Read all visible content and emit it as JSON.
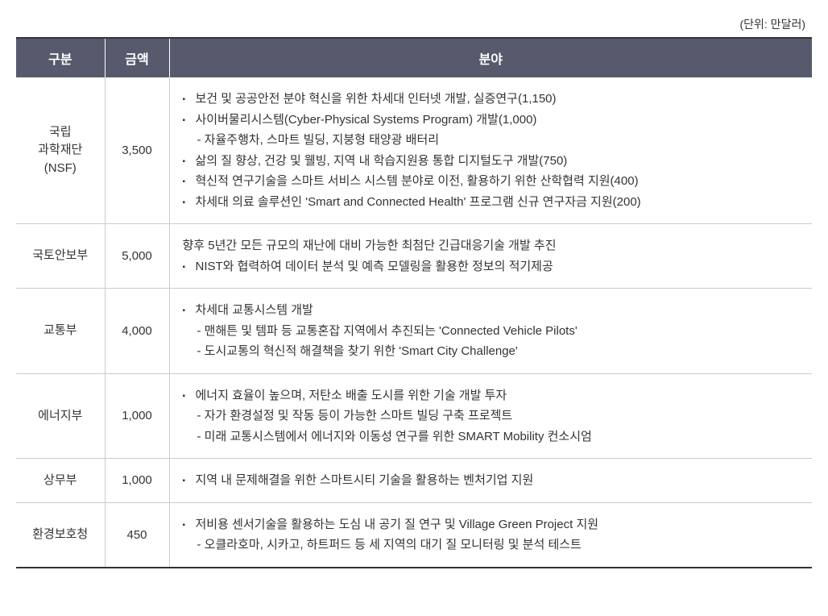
{
  "unit_label": "(단위: 만달러)",
  "columns": {
    "c1": "구분",
    "c2": "금액",
    "c3": "분야"
  },
  "colors": {
    "header_bg": "#575a6c",
    "header_fg": "#ffffff",
    "border_dark": "#333333",
    "border_light": "#cccccc",
    "text": "#333333",
    "background": "#ffffff"
  },
  "rows": [
    {
      "category": "국립\n과학재단\n(NSF)",
      "amount": "3,500",
      "items": [
        {
          "type": "bullet",
          "text": "보건 및 공공안전 분야 혁신을 위한 차세대 인터넷 개발, 실증연구(1,150)"
        },
        {
          "type": "bullet",
          "text": "사이버물리시스템(Cyber-Physical Systems Program) 개발(1,000)"
        },
        {
          "type": "sub",
          "text": "자율주행차, 스마트 빌딩, 지붕형 태양광 배터리"
        },
        {
          "type": "bullet",
          "text": "삶의 질 향상, 건강 및 웰빙, 지역 내 학습지원용 통합 디지털도구 개발(750)"
        },
        {
          "type": "bullet",
          "text": "혁신적 연구기술을 스마트 서비스 시스템 분야로 이전, 활용하기 위한 산학협력 지원(400)"
        },
        {
          "type": "bullet",
          "text": "차세대 의료 솔루션인 'Smart and Connected Health' 프로그램 신규 연구자금 지원(200)"
        }
      ]
    },
    {
      "category": "국토안보부",
      "amount": "5,000",
      "plain": "향후 5년간 모든 규모의 재난에 대비 가능한 최첨단 긴급대응기술 개발 추진",
      "items": [
        {
          "type": "bullet",
          "text": "NIST와 협력하여 데이터 분석 및 예측 모델링을 활용한 정보의 적기제공"
        }
      ]
    },
    {
      "category": "교통부",
      "amount": "4,000",
      "items": [
        {
          "type": "bullet",
          "text": "차세대 교통시스템 개발"
        },
        {
          "type": "sub",
          "text": "맨해튼 및 템파 등 교통혼잡 지역에서 추진되는 'Connected Vehicle Pilots'"
        },
        {
          "type": "sub",
          "text": "도시교통의 혁신적 해결책을 찾기 위한 'Smart City Challenge'"
        }
      ]
    },
    {
      "category": "에너지부",
      "amount": "1,000",
      "items": [
        {
          "type": "bullet",
          "text": "에너지 효율이 높으며, 저탄소 배출 도시를 위한 기술 개발 투자"
        },
        {
          "type": "sub",
          "text": "자가 환경설정 및 작동 등이 가능한 스마트 빌딩 구축 프로젝트"
        },
        {
          "type": "sub",
          "text": "미래 교통시스템에서 에너지와 이동성 연구를 위한 SMART Mobility 컨소시엄"
        }
      ]
    },
    {
      "category": "상무부",
      "amount": "1,000",
      "items": [
        {
          "type": "bullet",
          "text": "지역 내 문제해결을 위한 스마트시티 기술을 활용하는 벤처기업 지원"
        }
      ]
    },
    {
      "category": "환경보호청",
      "amount": "450",
      "items": [
        {
          "type": "bullet",
          "text": "저비용 센서기술을 활용하는 도심 내 공기 질 연구 및 Village Green Project 지원"
        },
        {
          "type": "sub",
          "text": "오클라호마, 시카고, 하트퍼드 등 세 지역의 대기 질 모니터링 및 분석 테스트"
        }
      ]
    }
  ]
}
